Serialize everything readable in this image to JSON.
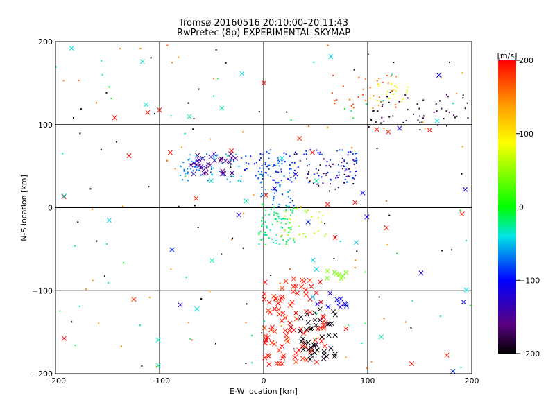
{
  "chart_data": {
    "type": "scatter",
    "title": "Tromsø 20160516 20:10:00–20:11:43",
    "subtitle": "RwPretec (8p) EXPERIMENTAL SKYMAP",
    "xlabel": "E-W location [km]",
    "ylabel": "N-S location [km]",
    "xlim": [
      -200,
      200
    ],
    "ylim": [
      -200,
      200
    ],
    "x_ticks": [
      -200,
      -100,
      0,
      100,
      200
    ],
    "y_ticks": [
      -200,
      -100,
      0,
      100,
      200
    ],
    "grid": true,
    "colorbar": {
      "unit": "[m/s]",
      "range": [
        -200,
        200
      ],
      "ticks": [
        200,
        100,
        0,
        -100,
        -200
      ],
      "colormap": "rainbow (black-purple-blue-cyan-green-yellow-orange-red)"
    },
    "marker_styles": [
      "dot",
      "x"
    ],
    "clusters": [
      {
        "x": [
          -70,
          -25
        ],
        "y": [
          40,
          65
        ],
        "velocity": -150,
        "marker": "x",
        "count": 30
      },
      {
        "x": [
          -80,
          -20
        ],
        "y": [
          30,
          65
        ],
        "velocity": -60,
        "marker": "dot",
        "count": 60
      },
      {
        "x": [
          -20,
          90
        ],
        "y": [
          30,
          70
        ],
        "velocity": -90,
        "marker": "dot",
        "count": 110
      },
      {
        "x": [
          40,
          90
        ],
        "y": [
          20,
          60
        ],
        "velocity": -170,
        "marker": "dot",
        "count": 40
      },
      {
        "x": [
          -5,
          30
        ],
        "y": [
          0,
          60
        ],
        "velocity": -70,
        "marker": "dot",
        "count": 60
      },
      {
        "x": [
          -5,
          30
        ],
        "y": [
          -45,
          5
        ],
        "velocity": -20,
        "marker": "dot",
        "count": 80
      },
      {
        "x": [
          20,
          60
        ],
        "y": [
          -40,
          0
        ],
        "velocity": 60,
        "marker": "dot",
        "count": 30
      },
      {
        "x": [
          100,
          200
        ],
        "y": [
          95,
          140
        ],
        "velocity": -180,
        "marker": "dot",
        "count": 50
      },
      {
        "x": [
          60,
          130
        ],
        "y": [
          120,
          160
        ],
        "velocity": 170,
        "marker": "dot",
        "count": 30
      },
      {
        "x": [
          100,
          140
        ],
        "y": [
          125,
          150
        ],
        "velocity": 90,
        "marker": "dot",
        "count": 20
      },
      {
        "x": [
          0,
          60
        ],
        "y": [
          -190,
          -85
        ],
        "velocity": 195,
        "marker": "x",
        "count": 100
      },
      {
        "x": [
          35,
          70
        ],
        "y": [
          -185,
          -120
        ],
        "velocity": -200,
        "marker": "x",
        "count": 40
      },
      {
        "x": [
          50,
          85
        ],
        "y": [
          -120,
          -100
        ],
        "velocity": -110,
        "marker": "x",
        "count": 10
      },
      {
        "x": [
          60,
          80
        ],
        "y": [
          -90,
          -75
        ],
        "velocity": 40,
        "marker": "x",
        "count": 8
      },
      {
        "x": [
          -200,
          200
        ],
        "y": [
          -200,
          200
        ],
        "velocity": -200,
        "marker": "dot",
        "count": 60
      },
      {
        "x": [
          -200,
          200
        ],
        "y": [
          -200,
          200
        ],
        "velocity": 150,
        "marker": "dot",
        "count": 60
      },
      {
        "x": [
          -200,
          200
        ],
        "y": [
          -200,
          200
        ],
        "velocity": -20,
        "marker": "dot",
        "count": 50
      },
      {
        "x": [
          -200,
          200
        ],
        "y": [
          -200,
          200
        ],
        "velocity": 200,
        "marker": "x",
        "count": 25
      },
      {
        "x": [
          -200,
          200
        ],
        "y": [
          -200,
          200
        ],
        "velocity": -40,
        "marker": "x",
        "count": 25
      },
      {
        "x": [
          -200,
          200
        ],
        "y": [
          -200,
          200
        ],
        "velocity": -110,
        "marker": "x",
        "count": 15
      }
    ]
  }
}
